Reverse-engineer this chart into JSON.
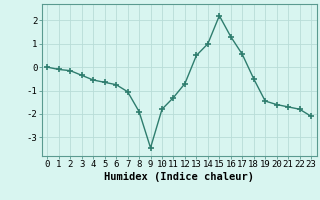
{
  "x": [
    0,
    1,
    2,
    3,
    4,
    5,
    6,
    7,
    8,
    9,
    10,
    11,
    12,
    13,
    14,
    15,
    16,
    17,
    18,
    19,
    20,
    21,
    22,
    23
  ],
  "y": [
    0.0,
    -0.1,
    -0.15,
    -0.35,
    -0.55,
    -0.65,
    -0.75,
    -1.05,
    -1.9,
    -3.45,
    -1.8,
    -1.3,
    -0.7,
    0.5,
    1.0,
    2.2,
    1.3,
    0.55,
    -0.5,
    -1.45,
    -1.6,
    -1.7,
    -1.8,
    -2.1
  ],
  "line_color": "#2e7d6e",
  "marker": "+",
  "marker_size": 4,
  "marker_linewidth": 1.2,
  "line_width": 1.0,
  "bg_color": "#d8f5f0",
  "grid_color": "#b8ddd8",
  "xlabel": "Humidex (Indice chaleur)",
  "xlabel_fontsize": 7.5,
  "tick_fontsize": 6.5,
  "ylim": [
    -3.8,
    2.7
  ],
  "xlim": [
    -0.5,
    23.5
  ],
  "yticks": [
    -3,
    -2,
    -1,
    0,
    1,
    2
  ],
  "xticks": [
    0,
    1,
    2,
    3,
    4,
    5,
    6,
    7,
    8,
    9,
    10,
    11,
    12,
    13,
    14,
    15,
    16,
    17,
    18,
    19,
    20,
    21,
    22,
    23
  ]
}
